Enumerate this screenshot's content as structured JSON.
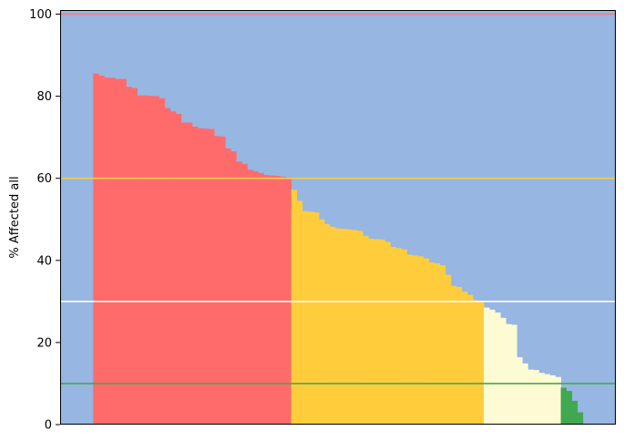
{
  "chart_data": {
    "type": "bar",
    "title": "",
    "xlabel": "",
    "ylabel": "% Affected all",
    "ylim": [
      0,
      101
    ],
    "yticks": [
      0,
      20,
      40,
      60,
      80,
      100
    ],
    "x_tick_labels": false,
    "grid": false,
    "legend": "none",
    "background_color": "#97b6e2",
    "leading_empty_bars": 6,
    "trailing_empty_bars": 6,
    "reference_lines": [
      {
        "y": 100,
        "color": "#f07f7f"
      },
      {
        "y": 60,
        "color": "#f0cd45"
      },
      {
        "y": 30,
        "color": "#ffffff"
      },
      {
        "y": 10,
        "color": "#46a84f"
      }
    ],
    "bands": [
      {
        "color": "#ff6b6b",
        "min": 60
      },
      {
        "color": "#ffcd3c",
        "min": 30
      },
      {
        "color": "#fdfbd4",
        "min": 10
      },
      {
        "color": "#41a852",
        "min": 0
      }
    ],
    "values": [
      85.5,
      85,
      84.5,
      84.5,
      84.2,
      84.2,
      82.3,
      82,
      80.2,
      80.2,
      80.1,
      80,
      79.5,
      77.1,
      76.3,
      75.7,
      73.6,
      73.6,
      72.6,
      72.2,
      72.1,
      72,
      70.3,
      70.2,
      67.3,
      66.6,
      64.1,
      63.5,
      62.1,
      61.7,
      61.3,
      60.8,
      60.7,
      60.6,
      60.4,
      60.2,
      57.2,
      54.5,
      52,
      51.9,
      51.7,
      50,
      48.9,
      48.2,
      47.8,
      47.7,
      47.6,
      47.4,
      47.2,
      46,
      45.3,
      45.2,
      45.1,
      44.5,
      43.3,
      43,
      42.7,
      41.4,
      41.2,
      41,
      40.5,
      39.5,
      39.3,
      38.8,
      36.5,
      33.8,
      33.5,
      32.4,
      31.6,
      30.3,
      30.2,
      28.5,
      28,
      27.3,
      26,
      24.5,
      24.3,
      16.4,
      14.9,
      13.4,
      13.3,
      12.6,
      12.3,
      12,
      11.6,
      9,
      8.2,
      5.8,
      3
    ]
  }
}
